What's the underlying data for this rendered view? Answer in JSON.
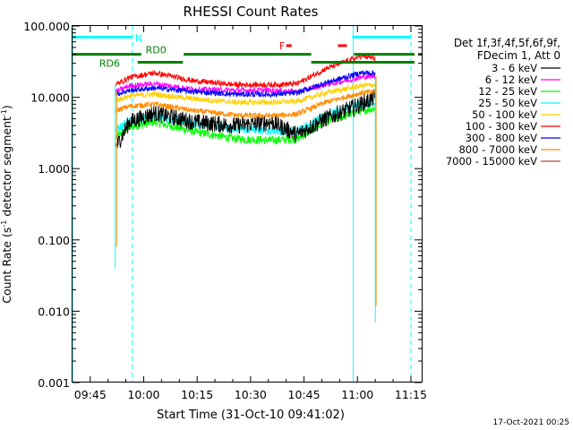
{
  "chart_data": {
    "type": "line",
    "title": "RHESSI Count Rates",
    "xlabel": "Start Time (31-Oct-10 09:41:02)",
    "ylabel_main": "Count Rate (s",
    "ylabel_sup1": "-1",
    "ylabel_mid": " detector segment",
    "ylabel_sup2": "-1",
    "ylabel_end": ")",
    "y_log": true,
    "ylim": [
      0.001,
      100
    ],
    "xlim_minutes": [
      -1.0,
      97.0
    ],
    "x_ticks": [
      {
        "label": "09:45",
        "minute": 3.97
      },
      {
        "label": "10:00",
        "minute": 18.97
      },
      {
        "label": "10:15",
        "minute": 33.97
      },
      {
        "label": "10:30",
        "minute": 48.97
      },
      {
        "label": "10:45",
        "minute": 63.97
      },
      {
        "label": "11:00",
        "minute": 78.97
      },
      {
        "label": "11:15",
        "minute": 93.97
      }
    ],
    "y_ticks": [
      {
        "label": "0.001",
        "value": 0.001
      },
      {
        "label": "0.010",
        "value": 0.01
      },
      {
        "label": "0.100",
        "value": 0.1
      },
      {
        "label": "1.000",
        "value": 1
      },
      {
        "label": "10.000",
        "value": 10
      },
      {
        "label": "100.000",
        "value": 100
      }
    ],
    "legend_position": "right",
    "legend_header": [
      "Det 1f,3f,4f,5f,6f,9f,",
      "FDecim 1, Att 0"
    ],
    "series": [
      {
        "name": "3 - 6 keV",
        "color": "#000000",
        "values_at": [
          [
            11.2,
            2.0
          ],
          [
            15,
            4.5
          ],
          [
            22,
            6.0
          ],
          [
            33,
            4.5
          ],
          [
            45,
            4.0
          ],
          [
            55,
            4.5
          ],
          [
            62,
            3.0
          ],
          [
            70,
            5.0
          ],
          [
            80,
            8.0
          ],
          [
            84,
            10.0
          ]
        ]
      },
      {
        "name": "6 - 12 keV",
        "color": "#ff00ff",
        "values_at": [
          [
            11.2,
            12.0
          ],
          [
            15,
            14.5
          ],
          [
            22,
            15.5
          ],
          [
            33,
            13.0
          ],
          [
            45,
            12.5
          ],
          [
            55,
            12.5
          ],
          [
            62,
            12.0
          ],
          [
            70,
            15.0
          ],
          [
            80,
            19.0
          ],
          [
            84,
            20.0
          ]
        ]
      },
      {
        "name": "12 - 25 keV",
        "color": "#00ff00",
        "values_at": [
          [
            11.2,
            2.8
          ],
          [
            15,
            3.8
          ],
          [
            22,
            4.5
          ],
          [
            33,
            3.3
          ],
          [
            45,
            2.6
          ],
          [
            55,
            2.5
          ],
          [
            62,
            2.6
          ],
          [
            70,
            4.5
          ],
          [
            80,
            6.5
          ],
          [
            84,
            7.0
          ]
        ]
      },
      {
        "name": "25 - 50 keV",
        "color": "#00ffff",
        "values_at": [
          [
            11.2,
            3.5
          ],
          [
            15,
            4.8
          ],
          [
            22,
            5.5
          ],
          [
            33,
            4.3
          ],
          [
            45,
            3.6
          ],
          [
            55,
            3.4
          ],
          [
            62,
            3.4
          ],
          [
            70,
            5.5
          ],
          [
            80,
            8.0
          ],
          [
            84,
            8.0
          ]
        ]
      },
      {
        "name": "50 - 100 keV",
        "color": "#ffd000",
        "values_at": [
          [
            11.2,
            9.0
          ],
          [
            15,
            10.5
          ],
          [
            22,
            11.0
          ],
          [
            33,
            9.5
          ],
          [
            45,
            8.5
          ],
          [
            55,
            8.5
          ],
          [
            62,
            8.8
          ],
          [
            70,
            11.5
          ],
          [
            80,
            14.5
          ],
          [
            84,
            15.0
          ]
        ]
      },
      {
        "name": "100 - 300 keV",
        "color": "#ff0000",
        "values_at": [
          [
            11.2,
            15.0
          ],
          [
            15,
            19.0
          ],
          [
            22,
            22.0
          ],
          [
            33,
            17.0
          ],
          [
            45,
            15.0
          ],
          [
            55,
            15.0
          ],
          [
            62,
            15.5
          ],
          [
            70,
            25.0
          ],
          [
            80,
            38.0
          ],
          [
            84,
            35.0
          ]
        ]
      },
      {
        "name": "300 - 800 keV",
        "color": "#0000ff",
        "values_at": [
          [
            11.2,
            11.0
          ],
          [
            15,
            12.5
          ],
          [
            22,
            13.5
          ],
          [
            33,
            12.0
          ],
          [
            45,
            11.0
          ],
          [
            55,
            11.0
          ],
          [
            62,
            11.5
          ],
          [
            70,
            16.0
          ],
          [
            80,
            22.0
          ],
          [
            84,
            22.0
          ]
        ]
      },
      {
        "name": "800 - 7000 keV",
        "color": "#ff8c00",
        "values_at": [
          [
            11.2,
            6.5
          ],
          [
            15,
            7.5
          ],
          [
            22,
            8.0
          ],
          [
            33,
            6.5
          ],
          [
            45,
            5.6
          ],
          [
            55,
            5.5
          ],
          [
            62,
            5.8
          ],
          [
            70,
            8.5
          ],
          [
            80,
            11.5
          ],
          [
            84,
            12.0
          ]
        ]
      },
      {
        "name": "7000 - 15000 keV",
        "color": "#a0522d",
        "values_at": []
      }
    ],
    "bars": [
      {
        "label": "N",
        "color": "#00ffff",
        "y": 70,
        "x_ranges": [
          [
            -1.0,
            15.8
          ],
          [
            77.5,
            94.0
          ]
        ]
      },
      {
        "label": "",
        "color": "#008000",
        "y": 40,
        "x_ranges": [
          [
            -1.0,
            18.3
          ],
          [
            78.0,
            95.0
          ],
          [
            96.0,
            97.0
          ]
        ]
      },
      {
        "label": "RD6",
        "color": "#008000",
        "y": 31,
        "x_ranges": [
          [
            17.3,
            30.0
          ],
          [
            66.0,
            95.0
          ]
        ]
      },
      {
        "label": "RD0",
        "color": "#008000",
        "y": 40,
        "x_ranges": [
          [
            30.2,
            66.0
          ]
        ]
      },
      {
        "label": "F",
        "color": "#ff0000",
        "y": 53,
        "x_ranges": [
          [
            59.0,
            60.5
          ],
          [
            73.5,
            76.0
          ]
        ]
      }
    ],
    "cyan_solid_lines_minutes": [
      -1.0,
      77.8
    ],
    "cyan_dashed_lines_minutes": [
      15.8,
      94.0
    ],
    "footer_date": "17-Oct-2021 00:25"
  }
}
